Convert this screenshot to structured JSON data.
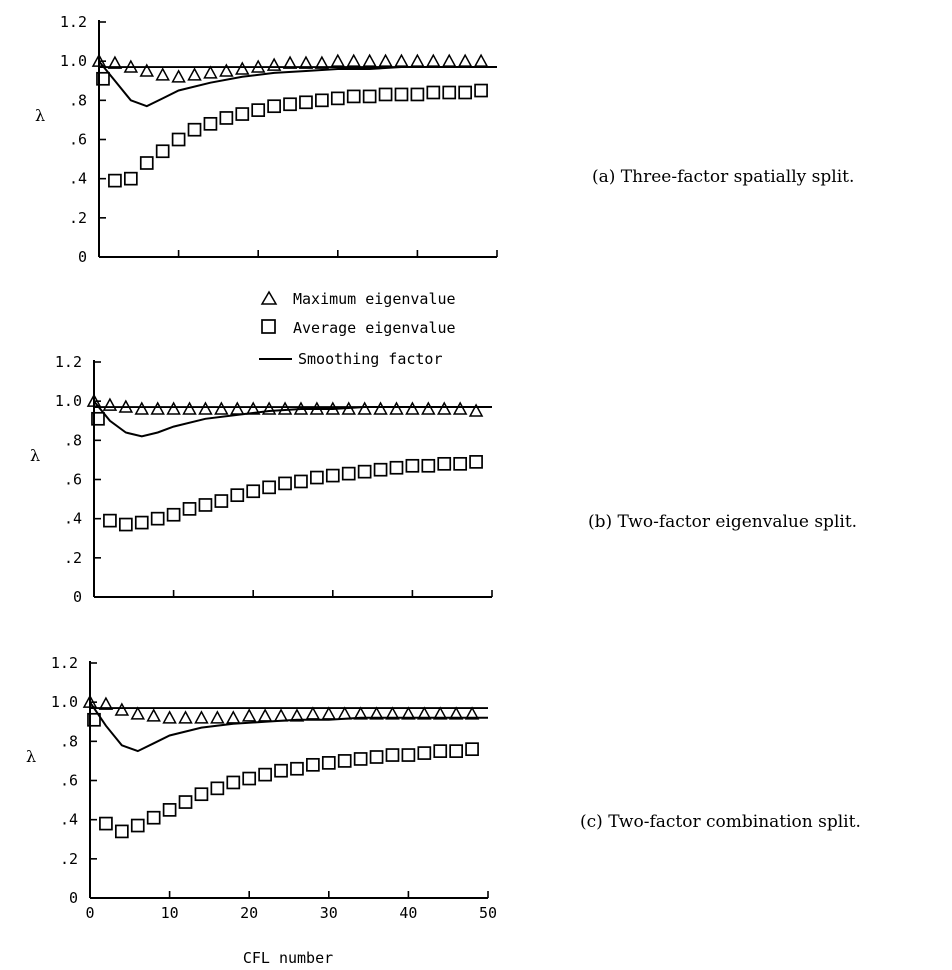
{
  "legend": {
    "max_label": "Maximum eigenvalue",
    "avg_label": "Average eigenvalue",
    "smooth_label": "Smoothing factor"
  },
  "chart_data": [
    {
      "type": "scatter",
      "caption": "(a) Three-factor spatially split.",
      "ylabel": "λ",
      "xlabel": "",
      "ylim": [
        0,
        1.2
      ],
      "xlim": [
        0,
        50
      ],
      "yticks": [
        "0",
        ".2",
        ".4",
        ".6",
        ".8",
        "1.0",
        "1.2"
      ],
      "xticks": [],
      "reference_line": 0.97,
      "series": [
        {
          "name": "Maximum eigenvalue",
          "marker": "triangle",
          "x": [
            0,
            2,
            4,
            6,
            8,
            10,
            12,
            14,
            16,
            18,
            20,
            22,
            24,
            26,
            28,
            30,
            32,
            34,
            36,
            38,
            40,
            42,
            44,
            46,
            48
          ],
          "y": [
            1.0,
            0.99,
            0.97,
            0.95,
            0.93,
            0.92,
            0.93,
            0.94,
            0.95,
            0.96,
            0.97,
            0.98,
            0.99,
            0.99,
            0.99,
            1.0,
            1.0,
            1.0,
            1.0,
            1.0,
            1.0,
            1.0,
            1.0,
            1.0,
            1.0
          ]
        },
        {
          "name": "Average eigenvalue",
          "marker": "square",
          "x": [
            0.5,
            2,
            4,
            6,
            8,
            10,
            12,
            14,
            16,
            18,
            20,
            22,
            24,
            26,
            28,
            30,
            32,
            34,
            36,
            38,
            40,
            42,
            44,
            46,
            48
          ],
          "y": [
            0.91,
            0.39,
            0.4,
            0.48,
            0.54,
            0.6,
            0.65,
            0.68,
            0.71,
            0.73,
            0.75,
            0.77,
            0.78,
            0.79,
            0.8,
            0.81,
            0.82,
            0.82,
            0.83,
            0.83,
            0.83,
            0.84,
            0.84,
            0.84,
            0.85
          ]
        },
        {
          "name": "Smoothing factor",
          "marker": "line",
          "x": [
            0,
            2,
            4,
            6,
            8,
            10,
            14,
            18,
            22,
            26,
            30,
            34,
            38,
            42,
            46,
            50
          ],
          "y": [
            1.0,
            0.9,
            0.8,
            0.77,
            0.81,
            0.85,
            0.89,
            0.92,
            0.94,
            0.95,
            0.96,
            0.96,
            0.97,
            0.97,
            0.97,
            0.97
          ]
        }
      ]
    },
    {
      "type": "scatter",
      "caption": "(b) Two-factor eigenvalue split.",
      "ylabel": "λ",
      "xlabel": "",
      "ylim": [
        0,
        1.2
      ],
      "xlim": [
        0,
        50
      ],
      "yticks": [
        "0",
        ".2",
        ".4",
        ".6",
        ".8",
        "1.0",
        "1.2"
      ],
      "xticks": [],
      "reference_line": 0.97,
      "series": [
        {
          "name": "Maximum eigenvalue",
          "marker": "triangle",
          "x": [
            0,
            2,
            4,
            6,
            8,
            10,
            12,
            14,
            16,
            18,
            20,
            22,
            24,
            26,
            28,
            30,
            32,
            34,
            36,
            38,
            40,
            42,
            44,
            46,
            48
          ],
          "y": [
            1.0,
            0.98,
            0.97,
            0.96,
            0.96,
            0.96,
            0.96,
            0.96,
            0.96,
            0.96,
            0.96,
            0.96,
            0.96,
            0.96,
            0.96,
            0.96,
            0.96,
            0.96,
            0.96,
            0.96,
            0.96,
            0.96,
            0.96,
            0.96,
            0.95
          ]
        },
        {
          "name": "Average eigenvalue",
          "marker": "square",
          "x": [
            0.5,
            2,
            4,
            6,
            8,
            10,
            12,
            14,
            16,
            18,
            20,
            22,
            24,
            26,
            28,
            30,
            32,
            34,
            36,
            38,
            40,
            42,
            44,
            46,
            48
          ],
          "y": [
            0.91,
            0.39,
            0.37,
            0.38,
            0.4,
            0.42,
            0.45,
            0.47,
            0.49,
            0.52,
            0.54,
            0.56,
            0.58,
            0.59,
            0.61,
            0.62,
            0.63,
            0.64,
            0.65,
            0.66,
            0.67,
            0.67,
            0.68,
            0.68,
            0.69
          ]
        },
        {
          "name": "Smoothing factor",
          "marker": "line",
          "x": [
            0,
            2,
            4,
            6,
            8,
            10,
            14,
            18,
            22,
            26,
            30,
            34,
            38,
            42,
            46,
            50
          ],
          "y": [
            1.0,
            0.9,
            0.84,
            0.82,
            0.84,
            0.87,
            0.91,
            0.93,
            0.95,
            0.96,
            0.96,
            0.97,
            0.97,
            0.97,
            0.97,
            0.97
          ]
        }
      ]
    },
    {
      "type": "scatter",
      "caption": "(c) Two-factor combination split.",
      "ylabel": "λ",
      "xlabel": "CFL number",
      "ylim": [
        0,
        1.2
      ],
      "xlim": [
        0,
        50
      ],
      "yticks": [
        "0",
        ".2",
        ".4",
        ".6",
        ".8",
        "1.0",
        "1.2"
      ],
      "xticks": [
        "0",
        "10",
        "20",
        "30",
        "40",
        "50"
      ],
      "reference_line": 0.97,
      "series": [
        {
          "name": "Maximum eigenvalue",
          "marker": "triangle",
          "x": [
            0,
            2,
            4,
            6,
            8,
            10,
            12,
            14,
            16,
            18,
            20,
            22,
            24,
            26,
            28,
            30,
            32,
            34,
            36,
            38,
            40,
            42,
            44,
            46,
            48
          ],
          "y": [
            1.0,
            0.99,
            0.96,
            0.94,
            0.93,
            0.92,
            0.92,
            0.92,
            0.92,
            0.92,
            0.93,
            0.93,
            0.93,
            0.93,
            0.94,
            0.94,
            0.94,
            0.94,
            0.94,
            0.94,
            0.94,
            0.94,
            0.94,
            0.94,
            0.94
          ]
        },
        {
          "name": "Average eigenvalue",
          "marker": "square",
          "x": [
            0.5,
            2,
            4,
            6,
            8,
            10,
            12,
            14,
            16,
            18,
            20,
            22,
            24,
            26,
            28,
            30,
            32,
            34,
            36,
            38,
            40,
            42,
            44,
            46,
            48
          ],
          "y": [
            0.91,
            0.38,
            0.34,
            0.37,
            0.41,
            0.45,
            0.49,
            0.53,
            0.56,
            0.59,
            0.61,
            0.63,
            0.65,
            0.66,
            0.68,
            0.69,
            0.7,
            0.71,
            0.72,
            0.73,
            0.73,
            0.74,
            0.75,
            0.75,
            0.76
          ]
        },
        {
          "name": "Smoothing factor",
          "marker": "line",
          "x": [
            0,
            2,
            4,
            6,
            8,
            10,
            14,
            18,
            22,
            26,
            30,
            34,
            38,
            42,
            46,
            50
          ],
          "y": [
            1.0,
            0.88,
            0.78,
            0.75,
            0.79,
            0.83,
            0.87,
            0.89,
            0.9,
            0.91,
            0.91,
            0.92,
            0.92,
            0.92,
            0.92,
            0.92
          ]
        }
      ]
    }
  ]
}
